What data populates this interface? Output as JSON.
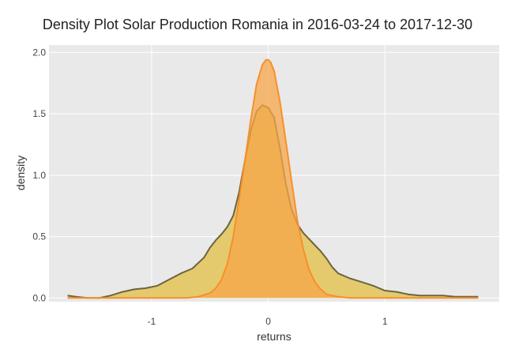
{
  "chart_data": {
    "type": "area",
    "title": "Density Plot Solar Production Romania in 2016-03-24 to 2017-12-30",
    "xlabel": "returns",
    "ylabel": "density",
    "xlim": [
      -1.88,
      1.98
    ],
    "ylim": [
      -0.03,
      2.06
    ],
    "x_ticks": [
      -1,
      0,
      1
    ],
    "x_tick_labels": [
      "-1",
      "0",
      "1"
    ],
    "y_ticks": [
      0,
      0.5,
      1,
      1.5,
      2
    ],
    "y_tick_labels": [
      "0.0",
      "0.5",
      "1.0",
      "1.5",
      "2.0"
    ],
    "grid": true,
    "legend": "none",
    "background": "#e9e9e9",
    "series": [
      {
        "fill": "#e3c457",
        "fill_opacity": 0.85,
        "line": "#6b6440",
        "x": [
          -1.72,
          -1.65,
          -1.55,
          -1.45,
          -1.35,
          -1.25,
          -1.15,
          -1.05,
          -0.95,
          -0.85,
          -0.75,
          -0.65,
          -0.55,
          -0.5,
          -0.45,
          -0.4,
          -0.35,
          -0.3,
          -0.25,
          -0.2,
          -0.15,
          -0.1,
          -0.05,
          0,
          0.05,
          0.1,
          0.15,
          0.2,
          0.25,
          0.3,
          0.35,
          0.4,
          0.45,
          0.5,
          0.55,
          0.6,
          0.7,
          0.8,
          0.9,
          1.0,
          1.1,
          1.2,
          1.3,
          1.4,
          1.5,
          1.6,
          1.7,
          1.8
        ],
        "y": [
          0.02,
          0.01,
          0.0,
          0.0,
          0.02,
          0.05,
          0.07,
          0.08,
          0.1,
          0.15,
          0.2,
          0.24,
          0.33,
          0.41,
          0.47,
          0.52,
          0.58,
          0.67,
          0.86,
          1.12,
          1.36,
          1.52,
          1.57,
          1.55,
          1.47,
          1.22,
          0.93,
          0.72,
          0.6,
          0.53,
          0.48,
          0.43,
          0.38,
          0.32,
          0.25,
          0.2,
          0.16,
          0.13,
          0.1,
          0.06,
          0.05,
          0.03,
          0.02,
          0.02,
          0.02,
          0.01,
          0.01,
          0.01
        ]
      },
      {
        "fill": "#f5a54a",
        "fill_opacity": 0.75,
        "line": "#f7902a",
        "x": [
          -1.72,
          -1.0,
          -0.7,
          -0.6,
          -0.5,
          -0.45,
          -0.4,
          -0.35,
          -0.3,
          -0.25,
          -0.2,
          -0.15,
          -0.1,
          -0.05,
          -0.02,
          0,
          0.02,
          0.05,
          0.1,
          0.15,
          0.2,
          0.25,
          0.3,
          0.35,
          0.4,
          0.45,
          0.5,
          0.6,
          0.7,
          1.0,
          1.8
        ],
        "y": [
          0.0,
          0.0,
          0.0,
          0.01,
          0.04,
          0.08,
          0.15,
          0.28,
          0.5,
          0.8,
          1.12,
          1.45,
          1.74,
          1.9,
          1.94,
          1.94,
          1.92,
          1.85,
          1.6,
          1.28,
          0.95,
          0.63,
          0.4,
          0.23,
          0.13,
          0.07,
          0.03,
          0.01,
          0.0,
          0.0,
          0.0
        ]
      }
    ]
  }
}
